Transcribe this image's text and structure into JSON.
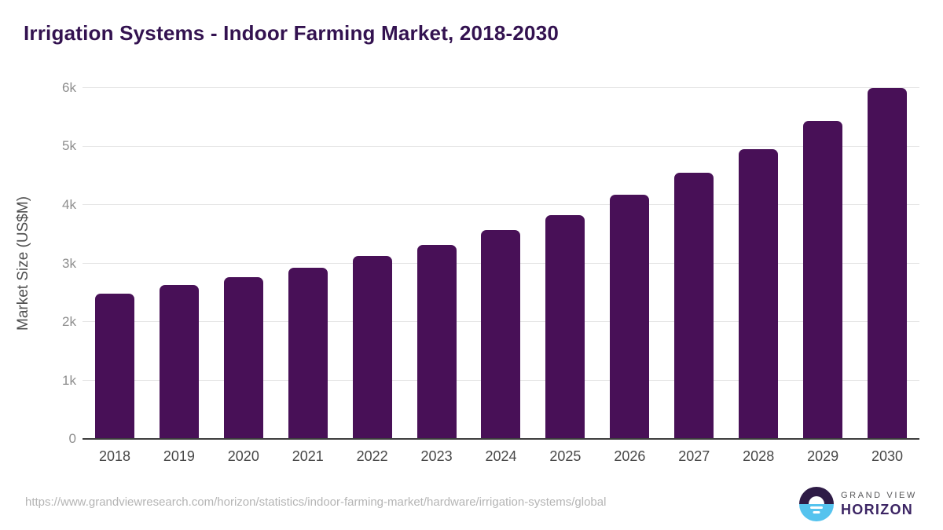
{
  "title": "Irrigation Systems - Indoor Farming Market, 2018-2030",
  "chart_data": {
    "type": "bar",
    "title": "Irrigation Systems - Indoor Farming Market, 2018-2030",
    "categories": [
      "2018",
      "2019",
      "2020",
      "2021",
      "2022",
      "2023",
      "2024",
      "2025",
      "2026",
      "2027",
      "2028",
      "2029",
      "2030"
    ],
    "values": [
      2490,
      2630,
      2770,
      2930,
      3130,
      3320,
      3570,
      3820,
      4170,
      4550,
      4950,
      5430,
      6000
    ],
    "xlabel": "",
    "ylabel": "Market Size (US$M)",
    "ylim": [
      0,
      6000
    ],
    "yticks": [
      0,
      1000,
      2000,
      3000,
      4000,
      5000,
      6000
    ],
    "ytick_labels": [
      "0",
      "1k",
      "2k",
      "3k",
      "4k",
      "5k",
      "6k"
    ],
    "bar_color": "#481057",
    "grid": true,
    "legend_position": "none"
  },
  "footer": {
    "source_url": "https://www.grandviewresearch.com/horizon/statistics/indoor-farming-market/hardware/irrigation-systems/global",
    "logo": {
      "line1": "GRAND VIEW",
      "line2": "HORIZON"
    }
  },
  "colors": {
    "title": "#331250",
    "bar": "#481057",
    "gridline": "#e6e6e6",
    "axis_line": "#3d3d3d",
    "tick_label": "#8e8e8e",
    "x_label": "#474747",
    "url_text": "#b5b5b5",
    "logo_purple": "#2e1b46",
    "logo_blue": "#55c3ee"
  }
}
